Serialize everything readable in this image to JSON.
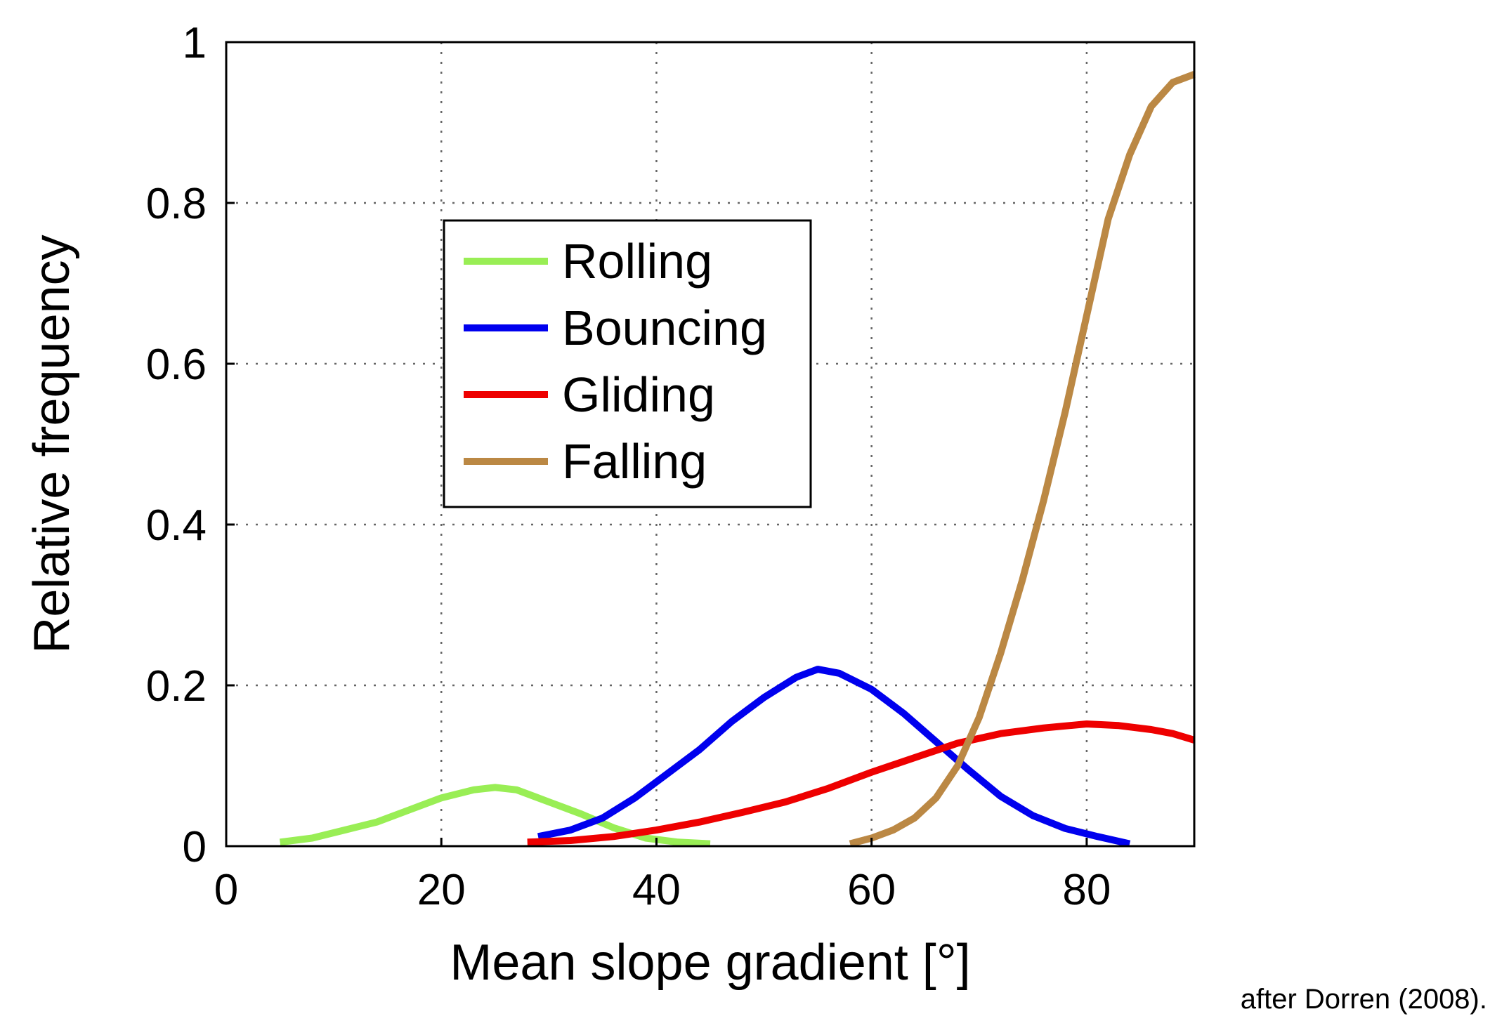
{
  "chart_data": {
    "type": "line",
    "xlabel": "Mean slope gradient [°]",
    "ylabel": "Relative frequency",
    "xlim": [
      0,
      90
    ],
    "ylim": [
      0,
      1
    ],
    "xticks": [
      0,
      20,
      40,
      60,
      80
    ],
    "yticks": [
      0,
      0.2,
      0.4,
      0.6,
      0.8,
      1
    ],
    "ytick_labels": [
      "0",
      "0.2",
      "0.4",
      "0.6",
      "0.8",
      "1"
    ],
    "xtick_labels": [
      "0",
      "20",
      "40",
      "60",
      "80"
    ],
    "grid": true,
    "legend_position": "upper-left-center",
    "series": [
      {
        "name": "Rolling",
        "color": "#99ee55",
        "x": [
          5,
          8,
          11,
          14,
          17,
          20,
          23,
          25,
          27,
          30,
          33,
          36,
          39,
          42,
          45
        ],
        "y": [
          0.005,
          0.01,
          0.02,
          0.03,
          0.045,
          0.06,
          0.07,
          0.073,
          0.07,
          0.055,
          0.04,
          0.023,
          0.01,
          0.005,
          0.003
        ]
      },
      {
        "name": "Bouncing",
        "color": "#0000ee",
        "x": [
          29,
          32,
          35,
          38,
          41,
          44,
          47,
          50,
          53,
          55,
          57,
          60,
          63,
          66,
          69,
          72,
          75,
          78,
          81,
          84
        ],
        "y": [
          0.012,
          0.02,
          0.035,
          0.06,
          0.09,
          0.12,
          0.155,
          0.185,
          0.21,
          0.22,
          0.215,
          0.195,
          0.165,
          0.13,
          0.095,
          0.062,
          0.038,
          0.022,
          0.012,
          0.003
        ]
      },
      {
        "name": "Gliding",
        "color": "#ee0000",
        "x": [
          28,
          32,
          36,
          40,
          44,
          48,
          52,
          56,
          60,
          64,
          68,
          72,
          76,
          80,
          83,
          86,
          88,
          90
        ],
        "y": [
          0.005,
          0.007,
          0.012,
          0.02,
          0.03,
          0.042,
          0.055,
          0.072,
          0.092,
          0.11,
          0.128,
          0.14,
          0.147,
          0.152,
          0.15,
          0.145,
          0.14,
          0.132
        ]
      },
      {
        "name": "Falling",
        "color": "#bb8844",
        "x": [
          58,
          60,
          62,
          64,
          66,
          68,
          70,
          72,
          74,
          76,
          78,
          80,
          82,
          84,
          86,
          88,
          90
        ],
        "y": [
          0.003,
          0.01,
          0.02,
          0.035,
          0.06,
          0.1,
          0.16,
          0.24,
          0.33,
          0.43,
          0.54,
          0.66,
          0.78,
          0.86,
          0.92,
          0.95,
          0.96
        ]
      }
    ]
  },
  "source_note": "after Dorren (2008)."
}
